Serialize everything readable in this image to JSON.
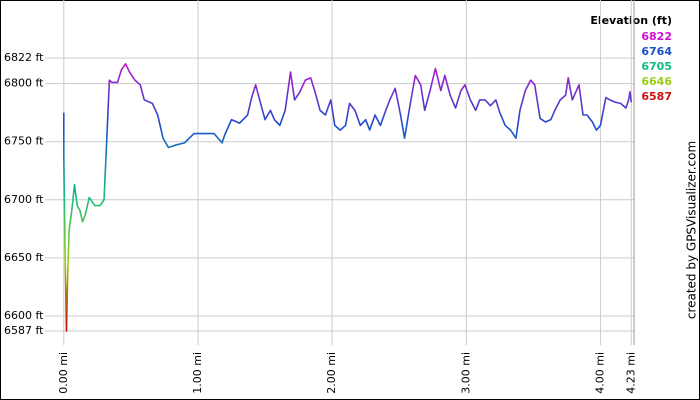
{
  "chart_data": {
    "type": "line",
    "legend_title": "Elevation (ft)",
    "credit": "created by GPSVisualizer.com",
    "color_scale": {
      "values": [
        6822,
        6764,
        6705,
        6646,
        6587
      ],
      "colors": [
        "#cc11cc",
        "#1a4fcc",
        "#11bb88",
        "#99cc11",
        "#cc1111"
      ]
    },
    "xlim": [
      -0.14,
      4.25
    ],
    "ylim": [
      6575,
      6872
    ],
    "xticks": [
      {
        "value": 0,
        "label": "0.00 mi"
      },
      {
        "value": 1,
        "label": "1.00 mi"
      },
      {
        "value": 2,
        "label": "2.00 mi"
      },
      {
        "value": 3,
        "label": "3.00 mi"
      },
      {
        "value": 4,
        "label": "4.00 mi"
      },
      {
        "value": 4.23,
        "label": "4.23 mi"
      }
    ],
    "yticks": [
      {
        "value": 6587,
        "label": "6587 ft"
      },
      {
        "value": 6600,
        "label": "6600 ft"
      },
      {
        "value": 6650,
        "label": "6650 ft"
      },
      {
        "value": 6700,
        "label": "6700 ft"
      },
      {
        "value": 6750,
        "label": "6750 ft"
      },
      {
        "value": 6800,
        "label": "6800 ft"
      },
      {
        "value": 6822,
        "label": "6822 ft"
      }
    ],
    "grid": true,
    "x": [
      0,
      0,
      0.01,
      0.02,
      0.03,
      0.04,
      0.06,
      0.08,
      0.1,
      0.12,
      0.14,
      0.16,
      0.19,
      0.23,
      0.27,
      0.3,
      0.32,
      0.34,
      0.36,
      0.4,
      0.43,
      0.46,
      0.49,
      0.53,
      0.57,
      0.6,
      0.66,
      0.7,
      0.74,
      0.78,
      0.83,
      0.9,
      0.97,
      1.04,
      1.12,
      1.18,
      1.2,
      1.25,
      1.31,
      1.37,
      1.4,
      1.43,
      1.46,
      1.5,
      1.54,
      1.57,
      1.61,
      1.65,
      1.69,
      1.72,
      1.76,
      1.8,
      1.84,
      1.87,
      1.91,
      1.95,
      1.99,
      2.02,
      2.06,
      2.1,
      2.13,
      2.17,
      2.21,
      2.25,
      2.28,
      2.32,
      2.36,
      2.4,
      2.43,
      2.47,
      2.51,
      2.54,
      2.58,
      2.62,
      2.66,
      2.69,
      2.73,
      2.77,
      2.81,
      2.84,
      2.88,
      2.92,
      2.96,
      2.99,
      3.03,
      3.07,
      3.1,
      3.14,
      3.18,
      3.22,
      3.25,
      3.29,
      3.33,
      3.37,
      3.4,
      3.44,
      3.48,
      3.51,
      3.55,
      3.59,
      3.63,
      3.66,
      3.7,
      3.74,
      3.76,
      3.79,
      3.84,
      3.87,
      3.9,
      3.94,
      3.97,
      4.0,
      4.04,
      4.07,
      4.11,
      4.15,
      4.19,
      4.21,
      4.22,
      4.23
    ],
    "values": [
      6775,
      6738,
      6650,
      6587,
      6640,
      6674,
      6691,
      6713,
      6695,
      6691,
      6681,
      6687,
      6702,
      6695,
      6695,
      6700,
      6751,
      6803,
      6801,
      6801,
      6812,
      6817,
      6810,
      6803,
      6799,
      6786,
      6783,
      6773,
      6753,
      6745,
      6747,
      6749,
      6757,
      6757,
      6757,
      6749,
      6756,
      6769,
      6766,
      6773,
      6788,
      6799,
      6786,
      6769,
      6777,
      6769,
      6764,
      6777,
      6810,
      6786,
      6793,
      6803,
      6805,
      6794,
      6777,
      6773,
      6786,
      6764,
      6760,
      6764,
      6783,
      6777,
      6764,
      6769,
      6760,
      6773,
      6764,
      6777,
      6786,
      6796,
      6773,
      6753,
      6781,
      6807,
      6799,
      6777,
      6794,
      6813,
      6794,
      6807,
      6790,
      6779,
      6794,
      6799,
      6786,
      6777,
      6786,
      6786,
      6781,
      6786,
      6775,
      6764,
      6760,
      6753,
      6777,
      6794,
      6803,
      6799,
      6770,
      6767,
      6769,
      6777,
      6786,
      6790,
      6805,
      6786,
      6799,
      6773,
      6773,
      6767,
      6760,
      6764,
      6788,
      6786,
      6784,
      6783,
      6779,
      6786,
      6793,
      6784
    ]
  }
}
